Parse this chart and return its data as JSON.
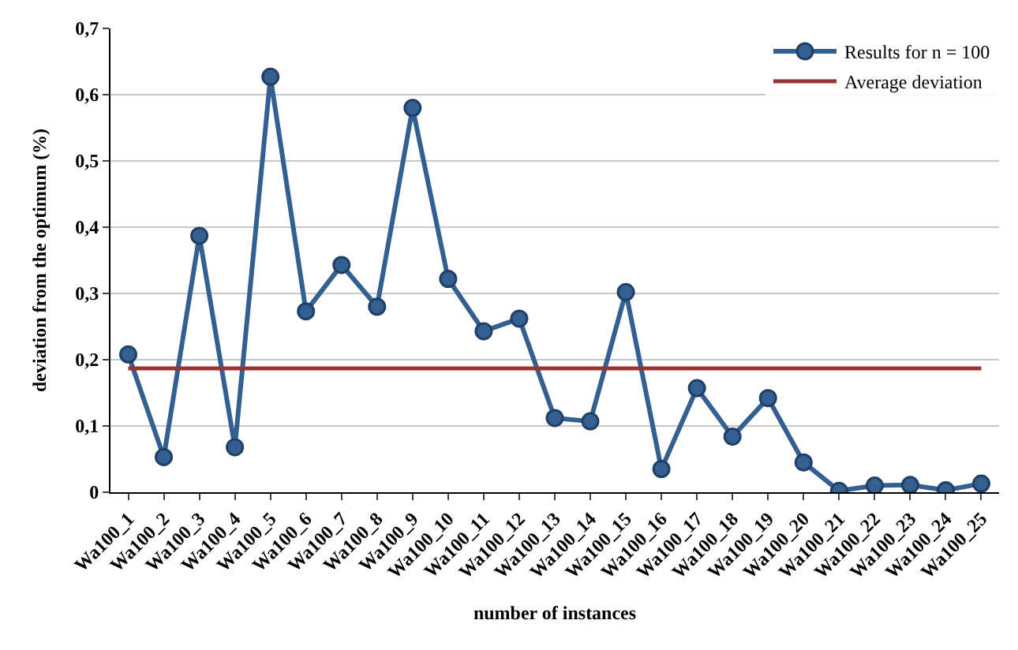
{
  "chart_data": {
    "type": "line",
    "xlabel": "number of instances",
    "ylabel": "deviation from the optimum (%)",
    "categories": [
      "Wa100_1",
      "Wa100_2",
      "Wa100_3",
      "Wa100_4",
      "Wa100_5",
      "Wa100_6",
      "Wa100_7",
      "Wa100_8",
      "Wa100_9",
      "Wa100_10",
      "Wa100_11",
      "Wa100_12",
      "Wa100_13",
      "Wa100_14",
      "Wa100_15",
      "Wa100_16",
      "Wa100_17",
      "Wa100_18",
      "Wa100_19",
      "Wa100_20",
      "Wa100_21",
      "Wa100_22",
      "Wa100_23",
      "Wa100_24",
      "Wa100_25"
    ],
    "series": [
      {
        "name": "Results for n = 100",
        "color": "#335f91",
        "marker": "circle",
        "values": [
          0.208,
          0.053,
          0.387,
          0.068,
          0.627,
          0.273,
          0.343,
          0.28,
          0.58,
          0.322,
          0.243,
          0.262,
          0.112,
          0.107,
          0.302,
          0.035,
          0.157,
          0.084,
          0.142,
          0.045,
          0.002,
          0.01,
          0.011,
          0.003,
          0.013
        ]
      },
      {
        "name": "Average deviation",
        "color": "#993333",
        "marker": "none",
        "values": [
          0.187,
          0.187,
          0.187,
          0.187,
          0.187,
          0.187,
          0.187,
          0.187,
          0.187,
          0.187,
          0.187,
          0.187,
          0.187,
          0.187,
          0.187,
          0.187,
          0.187,
          0.187,
          0.187,
          0.187,
          0.187,
          0.187,
          0.187,
          0.187,
          0.187
        ]
      }
    ],
    "ylim": [
      0,
      0.7
    ],
    "yticks": [
      0,
      {
        "value": 0.1,
        "label": "0,1"
      },
      {
        "value": 0.2,
        "label": "0,2"
      },
      {
        "value": 0.3,
        "label": "0,3"
      },
      {
        "value": 0.4,
        "label": "0,4"
      },
      {
        "value": 0.5,
        "label": "0,5"
      },
      {
        "value": 0.6,
        "label": "0,6"
      },
      {
        "value": 0.7,
        "label": "0,7"
      }
    ],
    "grid": "y",
    "legend": "top right",
    "line_style": "solid"
  }
}
